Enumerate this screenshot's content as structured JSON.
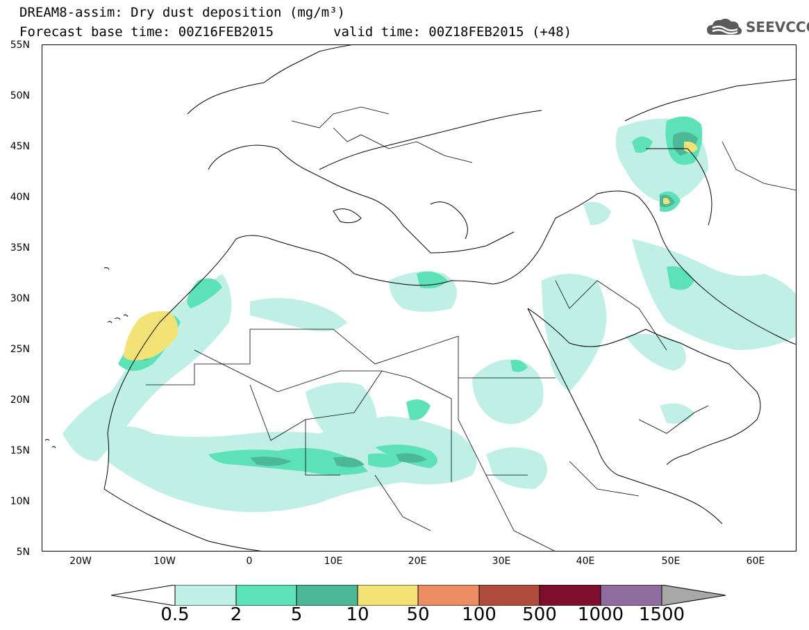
{
  "title": {
    "line1": "DREAM8-assim: Dry dust deposition (mg/m³)",
    "line2": "Forecast base time: 00Z16FEB2015",
    "line3": "valid time: 00Z18FEB2015 (+48)"
  },
  "logo": {
    "text": "SEEVCCC",
    "icon": "cloud-icon"
  },
  "axes": {
    "lat_labels": [
      "55N",
      "50N",
      "45N",
      "40N",
      "35N",
      "30N",
      "25N",
      "20N",
      "15N",
      "10N",
      "5N"
    ],
    "lon_labels": [
      "20W",
      "10W",
      "0",
      "10E",
      "20E",
      "30E",
      "40E",
      "50E",
      "60E"
    ],
    "lat_range": [
      5,
      55
    ],
    "lon_range": [
      -25,
      65
    ]
  },
  "colorbar": {
    "labels": [
      "0.5",
      "2",
      "5",
      "10",
      "50",
      "100",
      "500",
      "1000",
      "1500"
    ],
    "colors": [
      "#c0efe6",
      "#5de2b8",
      "#4db895",
      "#f3e377",
      "#ec8d65",
      "#b04c3d",
      "#7f0d2c",
      "#8e6d9e",
      "#a8a8a8"
    ]
  },
  "map": {
    "background": "#ffffff",
    "coastline_color": "#000000"
  }
}
